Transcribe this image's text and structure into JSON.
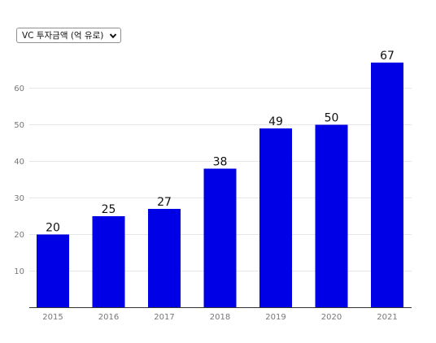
{
  "dropdown": {
    "selected": "VC 투자금액 (억 유로)"
  },
  "chart_data": {
    "type": "bar",
    "categories": [
      "2015",
      "2016",
      "2017",
      "2018",
      "2019",
      "2020",
      "2021"
    ],
    "values": [
      20,
      25,
      27,
      38,
      49,
      50,
      67
    ],
    "title": "",
    "xlabel": "",
    "ylabel": "",
    "ylim": [
      0,
      70
    ],
    "yticks": [
      10,
      20,
      30,
      40,
      50,
      60
    ],
    "grid": true,
    "data_labels": true,
    "bar_color": "#0000e6"
  }
}
